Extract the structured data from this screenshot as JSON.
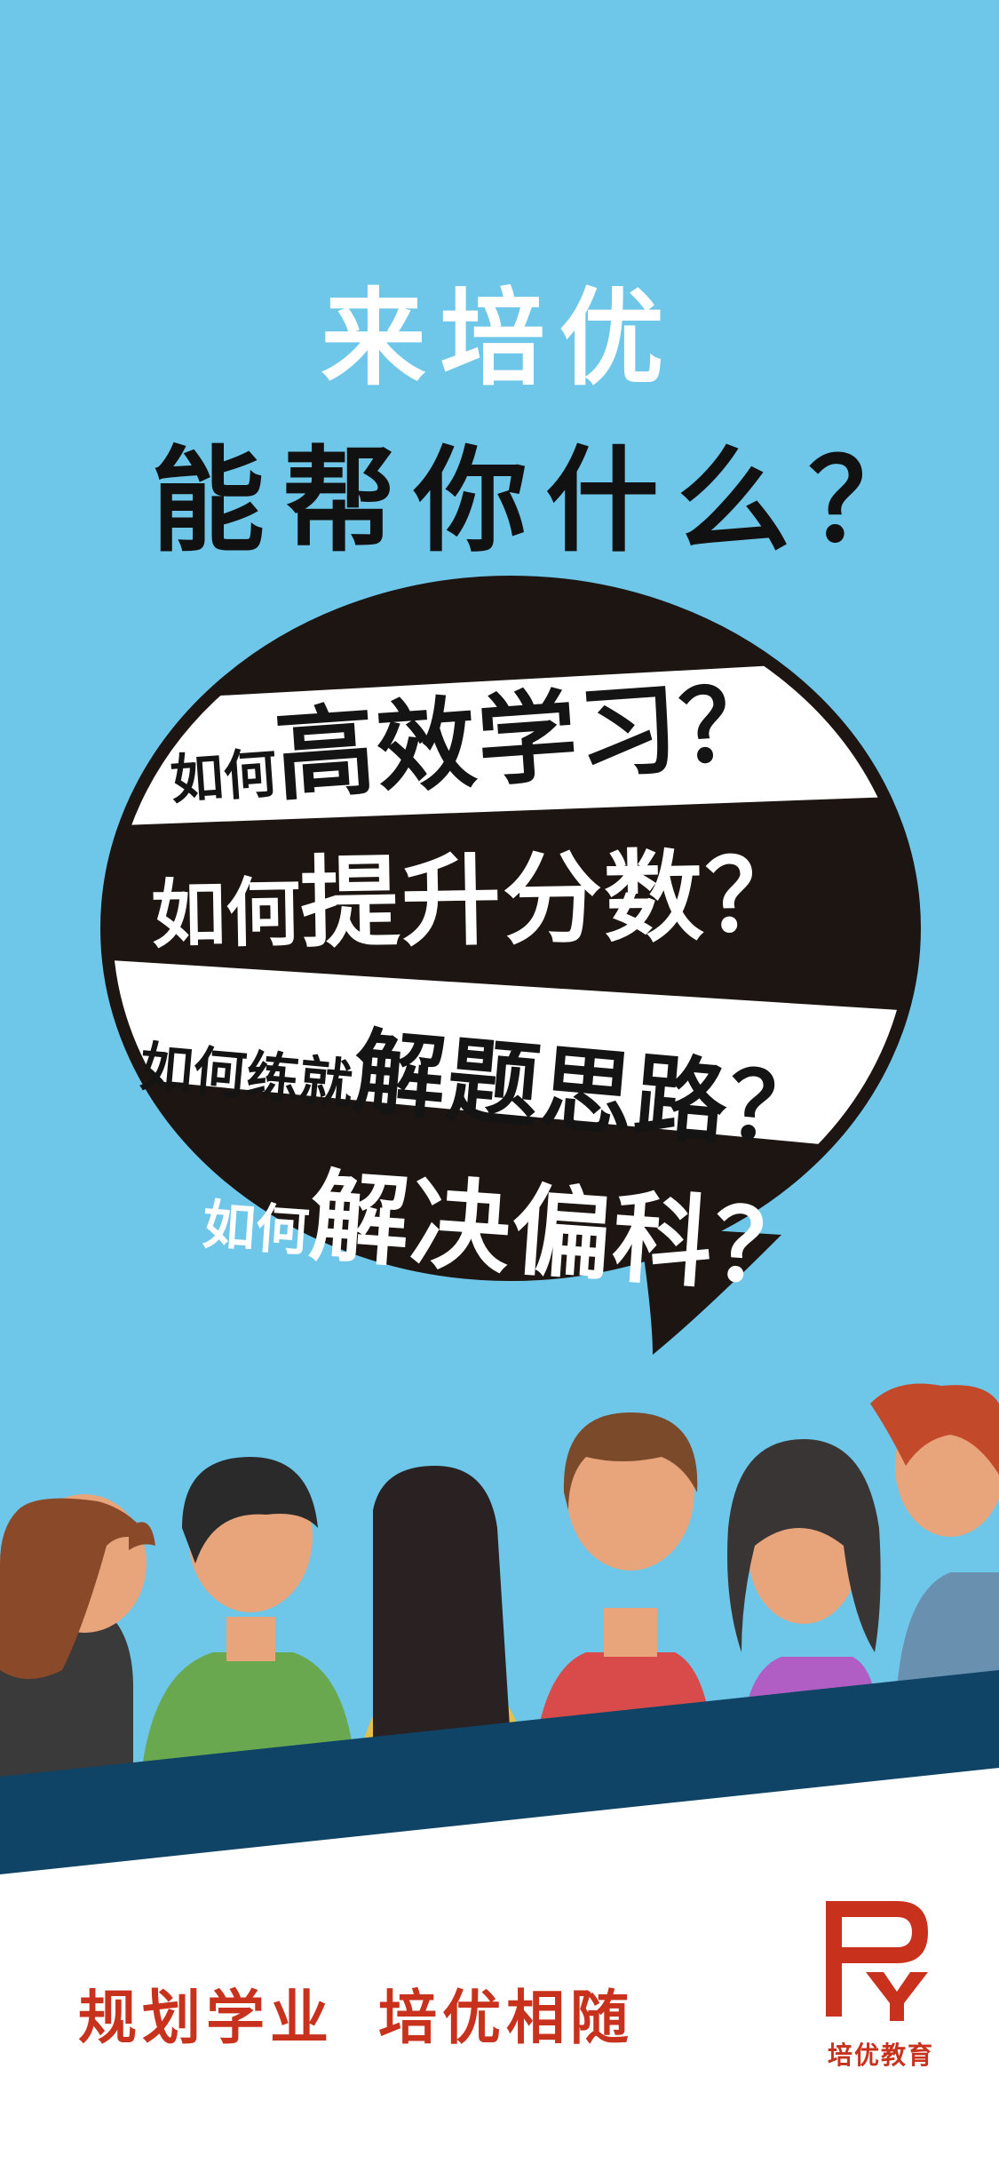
{
  "headline": {
    "line1": "来培优",
    "line2": "能帮你什么？"
  },
  "questions": [
    {
      "prefix": "如何",
      "main": "高效学习？"
    },
    {
      "prefix": "如何",
      "main": "提升分数？"
    },
    {
      "prefix": "如何练就",
      "main": "解题思路？"
    },
    {
      "prefix": "如何",
      "main": "解决偏科？"
    }
  ],
  "slogan": {
    "part1": "规划学业",
    "part2": "培优相随"
  },
  "brand": {
    "name": "培优教育",
    "logo_text": "PY"
  },
  "colors": {
    "sky": "#6ec6e8",
    "accent_red": "#c8321d",
    "bubble_black": "#1c1512",
    "band_navy": "#0f4466"
  }
}
